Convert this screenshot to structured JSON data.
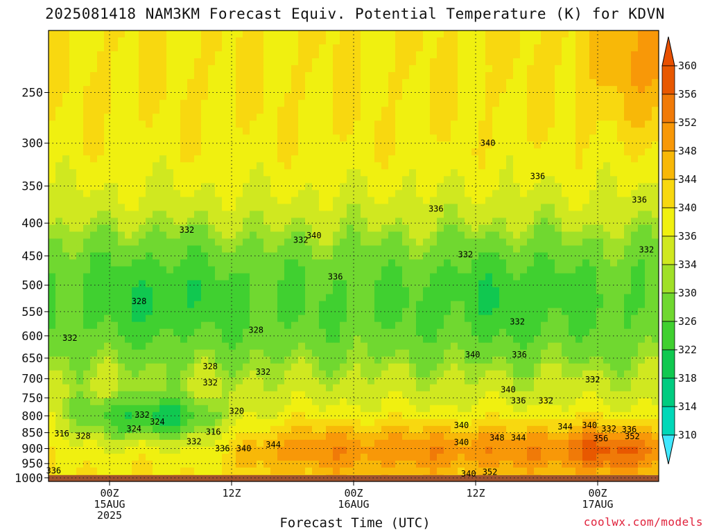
{
  "title": "2025081418 NAM3KM Forecast Equiv. Potential Temperature (K) for KDVN",
  "credit": "coolwx.com/models",
  "chart_data": {
    "type": "heatmap",
    "xlabel": "Forecast Time (UTC)",
    "ylabel": "",
    "y_axis": {
      "scale": "log",
      "inverted": true,
      "range_hpa": [
        1013,
        200
      ],
      "ticks": [
        250,
        300,
        350,
        400,
        450,
        500,
        550,
        600,
        650,
        700,
        750,
        800,
        850,
        900,
        950,
        1000
      ]
    },
    "x_axis": {
      "range_hours": [
        0,
        60
      ],
      "ticks": [
        {
          "hour": 6,
          "lines": [
            "00Z",
            "15AUG",
            "2025"
          ]
        },
        {
          "hour": 18,
          "lines": [
            "12Z"
          ]
        },
        {
          "hour": 30,
          "lines": [
            "00Z",
            "16AUG"
          ]
        },
        {
          "hour": 42,
          "lines": [
            "12Z"
          ]
        },
        {
          "hour": 54,
          "lines": [
            "00Z",
            "17AUG"
          ]
        }
      ]
    },
    "grid": true,
    "colorbar": {
      "levels": [
        310,
        314,
        318,
        322,
        326,
        330,
        334,
        336,
        340,
        344,
        348,
        352,
        356,
        360
      ],
      "labels": [
        "310",
        "314",
        "318",
        "322",
        "326",
        "330",
        "334",
        "336",
        "340",
        "344",
        "348",
        "352",
        "356",
        "360"
      ],
      "colors": [
        "#00e8f0",
        "#00d8b8",
        "#00cc80",
        "#10c850",
        "#40d030",
        "#70d830",
        "#a0e028",
        "#d0e820",
        "#f0f010",
        "#f8d810",
        "#f8b808",
        "#f89808",
        "#f07a08",
        "#e85800"
      ],
      "under_color": "#40e8ff",
      "over_color": "#e85000"
    },
    "contour_labels": [
      {
        "text": "340",
        "hour": 43.2,
        "hpa": 300
      },
      {
        "text": "336",
        "hour": 48.1,
        "hpa": 338
      },
      {
        "text": "336",
        "hour": 38.1,
        "hpa": 380
      },
      {
        "text": "336",
        "hour": 58.1,
        "hpa": 368
      },
      {
        "text": "332",
        "hour": 13.6,
        "hpa": 410
      },
      {
        "text": "332",
        "hour": 24.8,
        "hpa": 425
      },
      {
        "text": "340",
        "hour": 26.1,
        "hpa": 418
      },
      {
        "text": "336",
        "hour": 28.2,
        "hpa": 485
      },
      {
        "text": "332",
        "hour": 41.0,
        "hpa": 448
      },
      {
        "text": "332",
        "hour": 58.8,
        "hpa": 440
      },
      {
        "text": "328",
        "hour": 8.9,
        "hpa": 530
      },
      {
        "text": "328",
        "hour": 20.4,
        "hpa": 588
      },
      {
        "text": "332",
        "hour": 2.1,
        "hpa": 605
      },
      {
        "text": "332",
        "hour": 46.1,
        "hpa": 570
      },
      {
        "text": "340",
        "hour": 41.7,
        "hpa": 642
      },
      {
        "text": "336",
        "hour": 46.3,
        "hpa": 642
      },
      {
        "text": "328",
        "hour": 15.9,
        "hpa": 670
      },
      {
        "text": "332",
        "hour": 21.1,
        "hpa": 683
      },
      {
        "text": "332",
        "hour": 15.9,
        "hpa": 710
      },
      {
        "text": "332",
        "hour": 53.5,
        "hpa": 702
      },
      {
        "text": "340",
        "hour": 45.2,
        "hpa": 728
      },
      {
        "text": "336",
        "hour": 46.2,
        "hpa": 758
      },
      {
        "text": "332",
        "hour": 48.9,
        "hpa": 758
      },
      {
        "text": "320",
        "hour": 18.5,
        "hpa": 787
      },
      {
        "text": "332",
        "hour": 9.2,
        "hpa": 797
      },
      {
        "text": "324",
        "hour": 10.7,
        "hpa": 818
      },
      {
        "text": "324",
        "hour": 8.4,
        "hpa": 838
      },
      {
        "text": "316",
        "hour": 1.3,
        "hpa": 853
      },
      {
        "text": "328",
        "hour": 3.4,
        "hpa": 860
      },
      {
        "text": "316",
        "hour": 16.2,
        "hpa": 848
      },
      {
        "text": "340",
        "hour": 40.6,
        "hpa": 828
      },
      {
        "text": "344",
        "hour": 50.8,
        "hpa": 832
      },
      {
        "text": "340",
        "hour": 53.2,
        "hpa": 828
      },
      {
        "text": "332",
        "hour": 55.1,
        "hpa": 838
      },
      {
        "text": "336",
        "hour": 57.1,
        "hpa": 840
      },
      {
        "text": "332",
        "hour": 14.3,
        "hpa": 878
      },
      {
        "text": "340",
        "hour": 40.6,
        "hpa": 880
      },
      {
        "text": "348",
        "hour": 44.1,
        "hpa": 866
      },
      {
        "text": "344",
        "hour": 46.2,
        "hpa": 866
      },
      {
        "text": "356",
        "hour": 54.3,
        "hpa": 868
      },
      {
        "text": "352",
        "hour": 57.4,
        "hpa": 862
      },
      {
        "text": "344",
        "hour": 22.1,
        "hpa": 888
      },
      {
        "text": "336",
        "hour": 17.1,
        "hpa": 900
      },
      {
        "text": "340",
        "hour": 19.2,
        "hpa": 900
      },
      {
        "text": "336",
        "hour": 0.5,
        "hpa": 975
      },
      {
        "text": "340",
        "hour": 41.3,
        "hpa": 985
      },
      {
        "text": "352",
        "hour": 43.4,
        "hpa": 980
      }
    ]
  }
}
